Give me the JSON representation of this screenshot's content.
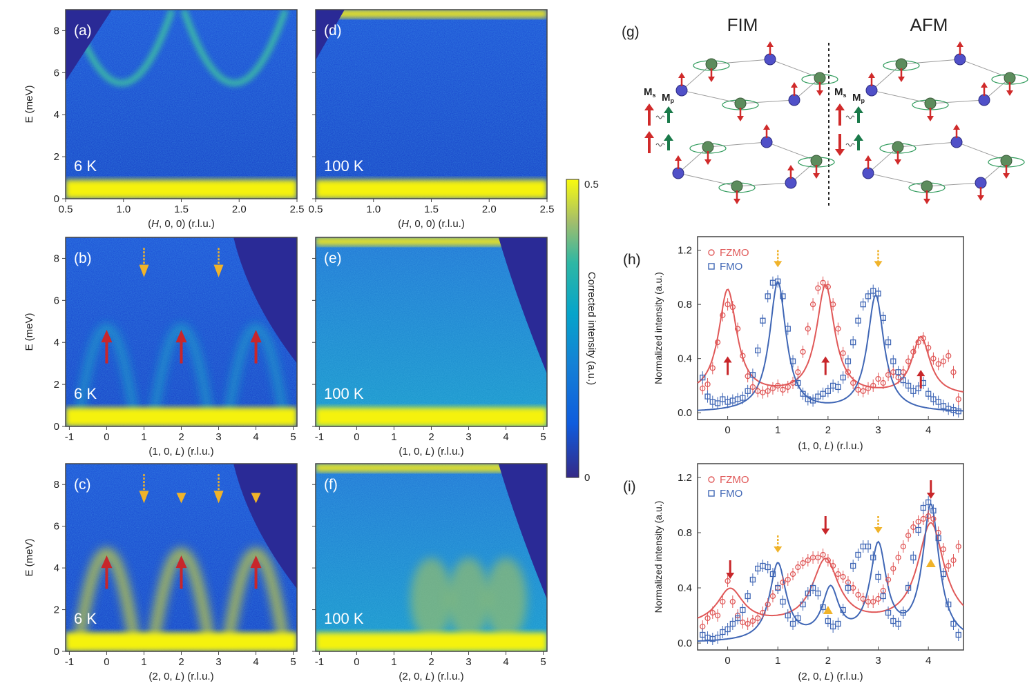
{
  "colorbar": {
    "label": "Corrected intensity (a.u.)",
    "max": "0.5",
    "min": "0"
  },
  "schematic": {
    "label": "(g)",
    "left_title": "FIM",
    "right_title": "AFM",
    "ms": "M",
    "ms_sub": "s",
    "mp": "M",
    "mp_sub": "p"
  },
  "maps": [
    {
      "id": "a",
      "label": "(a)",
      "temp": "6 K",
      "xlabel_parts": [
        "(",
        "H",
        ", 0, 0) (r.l.u.)"
      ],
      "xticks": [
        "0.5",
        "1.0",
        "1.5",
        "2.0",
        "2.5"
      ],
      "xrange": [
        0.5,
        2.5
      ],
      "ylabel": "E (meV)",
      "yticks": [
        "0",
        "2",
        "4",
        "6",
        "8"
      ],
      "yrange": [
        0,
        9
      ]
    },
    {
      "id": "d",
      "label": "(d)",
      "temp": "100 K",
      "xlabel_parts": [
        "(",
        "H",
        ", 0, 0) (r.l.u.)"
      ],
      "xticks": [
        "0.5",
        "1.0",
        "1.5",
        "2.0",
        "2.5"
      ],
      "xrange": [
        0.5,
        2.5
      ],
      "yrange": [
        0,
        9
      ]
    },
    {
      "id": "b",
      "label": "(b)",
      "temp": "6 K",
      "xlabel_parts": [
        "(1, 0, ",
        "L",
        ") (r.l.u.)"
      ],
      "xticks": [
        "-1",
        "0",
        "1",
        "2",
        "3",
        "4",
        "5"
      ],
      "xrange": [
        -1.1,
        5.1
      ],
      "ylabel": "E (meV)",
      "yticks": [
        "0",
        "2",
        "4",
        "6",
        "8"
      ],
      "yrange": [
        0,
        9
      ]
    },
    {
      "id": "e",
      "label": "(e)",
      "temp": "100 K",
      "xlabel_parts": [
        "(1, 0, ",
        "L",
        ") (r.l.u.)"
      ],
      "xticks": [
        "-1",
        "0",
        "1",
        "2",
        "3",
        "4",
        "5"
      ],
      "xrange": [
        -1.1,
        5.1
      ],
      "yrange": [
        0,
        9
      ]
    },
    {
      "id": "c",
      "label": "(c)",
      "temp": "6 K",
      "xlabel_parts": [
        "(2, 0, ",
        "L",
        ") (r.l.u.)"
      ],
      "xticks": [
        "-1",
        "0",
        "1",
        "2",
        "3",
        "4",
        "5"
      ],
      "xrange": [
        -1.1,
        5.1
      ],
      "ylabel": "E (meV)",
      "yticks": [
        "0",
        "2",
        "4",
        "6",
        "8"
      ],
      "yrange": [
        0,
        9
      ]
    },
    {
      "id": "f",
      "label": "(f)",
      "temp": "100 K",
      "xlabel_parts": [
        "(2, 0, ",
        "L",
        ") (r.l.u.)"
      ],
      "xticks": [
        "-1",
        "0",
        "1",
        "2",
        "3",
        "4",
        "5"
      ],
      "xrange": [
        -1.1,
        5.1
      ],
      "yrange": [
        0,
        9
      ]
    }
  ],
  "chart_data": [
    {
      "type": "scatter",
      "panel": "(h)",
      "xlabel_parts": [
        "(1, 0, ",
        "L",
        ") (r.l.u.)"
      ],
      "ylabel": "Normalized intensity (a.u.)",
      "xlim": [
        -0.6,
        4.7
      ],
      "ylim": [
        -0.05,
        1.3
      ],
      "xticks": [
        "0",
        "1",
        "2",
        "3",
        "4"
      ],
      "yticks": [
        "0.0",
        "0.4",
        "0.8",
        "1.2"
      ],
      "legend": "top-left",
      "series": [
        {
          "name": "FZMO",
          "color": "#e05858",
          "marker": "circle",
          "x": [
            -0.5,
            -0.4,
            -0.3,
            -0.2,
            -0.1,
            0.0,
            0.1,
            0.2,
            0.3,
            0.4,
            0.5,
            0.6,
            0.7,
            0.8,
            0.9,
            1.0,
            1.1,
            1.2,
            1.3,
            1.4,
            1.5,
            1.6,
            1.7,
            1.8,
            1.9,
            2.0,
            2.1,
            2.2,
            2.3,
            2.4,
            2.5,
            2.6,
            2.7,
            2.8,
            2.9,
            3.0,
            3.1,
            3.2,
            3.3,
            3.4,
            3.5,
            3.6,
            3.7,
            3.8,
            3.9,
            4.0,
            4.1,
            4.2,
            4.3,
            4.4,
            4.5,
            4.6
          ],
          "y": [
            0.18,
            0.21,
            0.33,
            0.52,
            0.72,
            0.8,
            0.78,
            0.62,
            0.42,
            0.27,
            0.19,
            0.16,
            0.15,
            0.16,
            0.18,
            0.2,
            0.17,
            0.19,
            0.22,
            0.3,
            0.45,
            0.62,
            0.8,
            0.92,
            0.96,
            0.93,
            0.8,
            0.62,
            0.44,
            0.3,
            0.22,
            0.17,
            0.16,
            0.18,
            0.2,
            0.25,
            0.22,
            0.28,
            0.3,
            0.26,
            0.3,
            0.38,
            0.45,
            0.52,
            0.55,
            0.48,
            0.4,
            0.36,
            0.38,
            0.42,
            0.3,
            0.1
          ],
          "fit_centers": [
            0.0,
            1.95,
            3.85
          ],
          "fit_amps": [
            0.78,
            0.81,
            0.43
          ],
          "fit_width": 0.22,
          "fit_base": 0.12
        },
        {
          "name": "FMO",
          "color": "#3f66b5",
          "marker": "square",
          "x": [
            -0.5,
            -0.4,
            -0.3,
            -0.2,
            -0.1,
            0.0,
            0.1,
            0.2,
            0.3,
            0.4,
            0.5,
            0.6,
            0.7,
            0.8,
            0.9,
            1.0,
            1.1,
            1.2,
            1.3,
            1.4,
            1.5,
            1.6,
            1.7,
            1.8,
            1.9,
            2.0,
            2.1,
            2.2,
            2.3,
            2.4,
            2.5,
            2.6,
            2.7,
            2.8,
            2.9,
            3.0,
            3.1,
            3.2,
            3.3,
            3.4,
            3.5,
            3.6,
            3.7,
            3.8,
            3.9,
            4.0,
            4.1,
            4.2,
            4.3,
            4.4,
            4.5,
            4.6
          ],
          "y": [
            0.26,
            0.12,
            0.08,
            0.07,
            0.1,
            0.08,
            0.09,
            0.1,
            0.11,
            0.16,
            0.28,
            0.46,
            0.68,
            0.86,
            0.96,
            0.97,
            0.86,
            0.62,
            0.38,
            0.22,
            0.14,
            0.1,
            0.09,
            0.12,
            0.14,
            0.16,
            0.2,
            0.19,
            0.26,
            0.38,
            0.52,
            0.68,
            0.8,
            0.86,
            0.9,
            0.88,
            0.7,
            0.52,
            0.38,
            0.3,
            0.24,
            0.2,
            0.16,
            0.18,
            0.22,
            0.14,
            0.1,
            0.08,
            0.05,
            0.03,
            0.02,
            0.01
          ],
          "fit_centers": [
            1.0,
            2.95
          ],
          "fit_amps": [
            0.96,
            0.86
          ],
          "fit_width": 0.2,
          "fit_base": 0.0
        }
      ],
      "annotations": [
        {
          "kind": "red-arrow-up",
          "x": 0.0,
          "y": 0.35
        },
        {
          "kind": "red-arrow-up",
          "x": 1.95,
          "y": 0.35
        },
        {
          "kind": "red-arrow-up",
          "x": 3.85,
          "y": 0.25
        },
        {
          "kind": "yellow-dashed-arrow-down",
          "x": 1.0,
          "y": 1.12
        },
        {
          "kind": "yellow-dashed-arrow-down",
          "x": 3.0,
          "y": 1.12
        }
      ]
    },
    {
      "type": "scatter",
      "panel": "(i)",
      "xlabel_parts": [
        "(2, 0, ",
        "L",
        ") (r.l.u.)"
      ],
      "ylabel": "Normalized intensity (a.u.)",
      "xlim": [
        -0.6,
        4.7
      ],
      "ylim": [
        -0.05,
        1.3
      ],
      "xticks": [
        "0",
        "1",
        "2",
        "3",
        "4"
      ],
      "yticks": [
        "0.0",
        "0.4",
        "0.8",
        "1.2"
      ],
      "legend": "top-left",
      "series": [
        {
          "name": "FZMO",
          "color": "#e05858",
          "marker": "circle",
          "x": [
            -0.5,
            -0.4,
            -0.3,
            -0.2,
            -0.1,
            0.0,
            0.1,
            0.2,
            0.3,
            0.4,
            0.5,
            0.6,
            0.7,
            0.8,
            0.9,
            1.0,
            1.1,
            1.2,
            1.3,
            1.4,
            1.5,
            1.6,
            1.7,
            1.8,
            1.9,
            2.0,
            2.1,
            2.2,
            2.3,
            2.4,
            2.5,
            2.6,
            2.7,
            2.8,
            2.9,
            3.0,
            3.1,
            3.2,
            3.3,
            3.4,
            3.5,
            3.6,
            3.7,
            3.8,
            3.9,
            4.0,
            4.1,
            4.2,
            4.3,
            4.4,
            4.5,
            4.6
          ],
          "y": [
            0.12,
            0.18,
            0.22,
            0.2,
            0.3,
            0.45,
            0.3,
            0.2,
            0.15,
            0.14,
            0.16,
            0.18,
            0.22,
            0.28,
            0.34,
            0.4,
            0.44,
            0.46,
            0.5,
            0.55,
            0.58,
            0.6,
            0.62,
            0.62,
            0.64,
            0.6,
            0.56,
            0.5,
            0.48,
            0.44,
            0.4,
            0.35,
            0.32,
            0.3,
            0.3,
            0.32,
            0.38,
            0.46,
            0.54,
            0.62,
            0.7,
            0.78,
            0.84,
            0.88,
            0.9,
            0.92,
            0.9,
            0.8,
            0.68,
            0.56,
            0.6,
            0.7
          ],
          "fit_centers": [
            0.05,
            1.95,
            4.05
          ],
          "fit_amps": [
            0.26,
            0.47,
            0.74
          ],
          "fit_width": 0.32,
          "fit_base": 0.12
        },
        {
          "name": "FMO",
          "color": "#3f66b5",
          "marker": "square",
          "x": [
            -0.5,
            -0.4,
            -0.3,
            -0.2,
            -0.1,
            0.0,
            0.1,
            0.2,
            0.3,
            0.4,
            0.5,
            0.6,
            0.7,
            0.8,
            0.9,
            1.0,
            1.1,
            1.2,
            1.3,
            1.4,
            1.5,
            1.6,
            1.7,
            1.8,
            1.9,
            2.0,
            2.1,
            2.2,
            2.3,
            2.4,
            2.5,
            2.6,
            2.7,
            2.8,
            2.9,
            3.0,
            3.1,
            3.2,
            3.3,
            3.4,
            3.5,
            3.6,
            3.7,
            3.8,
            3.9,
            4.0,
            4.1,
            4.2,
            4.3,
            4.4,
            4.5,
            4.6
          ],
          "y": [
            0.06,
            0.04,
            0.03,
            0.04,
            0.08,
            0.1,
            0.14,
            0.18,
            0.24,
            0.34,
            0.46,
            0.54,
            0.56,
            0.55,
            0.5,
            0.4,
            0.3,
            0.2,
            0.14,
            0.18,
            0.28,
            0.36,
            0.4,
            0.36,
            0.26,
            0.16,
            0.12,
            0.14,
            0.24,
            0.4,
            0.56,
            0.64,
            0.7,
            0.7,
            0.62,
            0.48,
            0.34,
            0.22,
            0.16,
            0.14,
            0.22,
            0.4,
            0.62,
            0.82,
            0.98,
            1.02,
            0.96,
            0.76,
            0.5,
            0.28,
            0.14,
            0.06
          ],
          "fit_centers": [
            1.0,
            2.05,
            3.0,
            4.05
          ],
          "fit_amps": [
            0.56,
            0.36,
            0.68,
            0.98
          ],
          "fit_width": 0.2,
          "fit_base": 0.0
        }
      ],
      "annotations": [
        {
          "kind": "red-arrow-down",
          "x": 0.05,
          "y": 0.52
        },
        {
          "kind": "red-arrow-down",
          "x": 1.95,
          "y": 0.84
        },
        {
          "kind": "red-arrow-down",
          "x": 4.05,
          "y": 1.1
        },
        {
          "kind": "yellow-dashed-arrow-down",
          "x": 1.0,
          "y": 0.7
        },
        {
          "kind": "yellow-dashed-arrow-down",
          "x": 3.0,
          "y": 0.84
        },
        {
          "kind": "yellow-triangle",
          "x": 2.0,
          "y": 0.24
        },
        {
          "kind": "yellow-triangle",
          "x": 4.05,
          "y": 0.58
        }
      ]
    }
  ]
}
